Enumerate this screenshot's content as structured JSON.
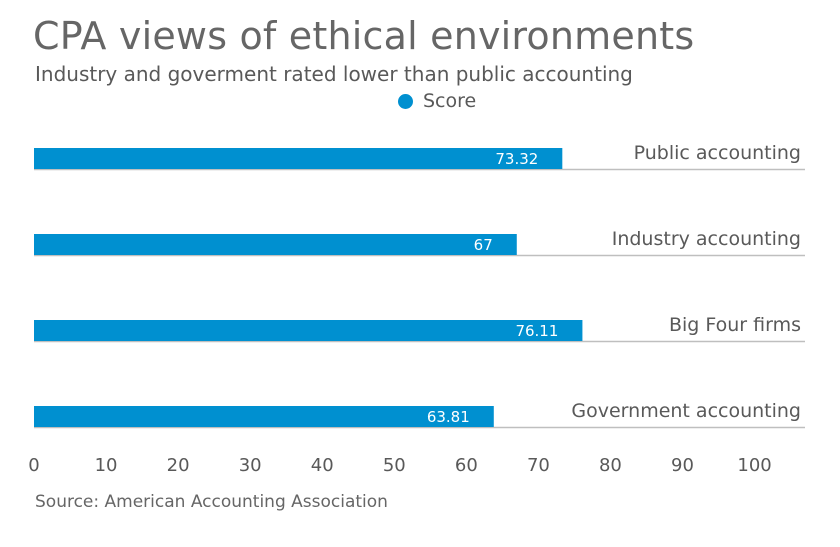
{
  "chart_data": {
    "type": "bar",
    "orientation": "horizontal",
    "title": "CPA views of ethical environments",
    "subtitle": "Industry and goverment rated lower than public accounting",
    "categories": [
      "Public accounting",
      "Industry accounting",
      "Big Four firms",
      "Government accounting"
    ],
    "series": [
      {
        "name": "Score",
        "values": [
          73.32,
          67,
          76.11,
          63.81
        ],
        "color": "#0090d0"
      }
    ],
    "data_labels": [
      "73.32",
      "67",
      "76.11",
      "63.81"
    ],
    "xlim": [
      0,
      107
    ],
    "xticks": [
      0,
      10,
      20,
      30,
      40,
      50,
      60,
      70,
      80,
      90,
      100
    ],
    "xlabel": "",
    "ylabel": "",
    "legend": "top-center",
    "grid": false,
    "source": "Source: American Accounting Association"
  }
}
